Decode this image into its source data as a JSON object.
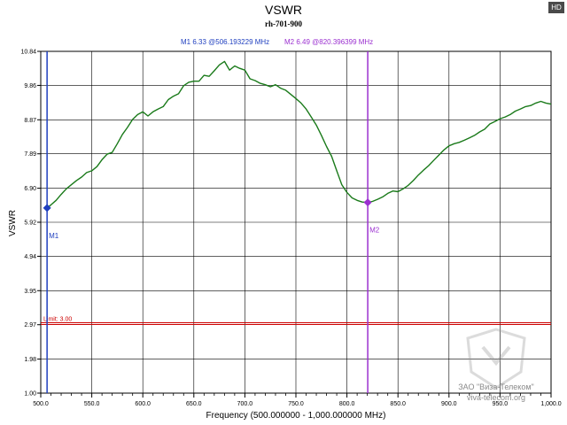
{
  "hd_badge": "HD",
  "watermark": {
    "line1": "ЗАО \"Виза-Телеком\"",
    "line2": "viva-telecom.org"
  },
  "chart_data": {
    "type": "line",
    "title": "VSWR",
    "subtitle": "rh-701-900",
    "xlabel": "Frequency (500.000000 - 1,000.000000 MHz)",
    "ylabel": "VSWR",
    "xlim": [
      500,
      1000
    ],
    "ylim": [
      1.0,
      10.84
    ],
    "x_ticks": [
      500,
      550,
      600,
      650,
      700,
      750,
      800,
      850,
      900,
      950,
      1000
    ],
    "x_tick_labels": [
      "500.0",
      "550.0",
      "600.0",
      "650.0",
      "700.0",
      "750.0",
      "800.0",
      "850.0",
      "900.0",
      "950.0",
      "1,000.0"
    ],
    "y_ticks": [
      1.0,
      1.98,
      2.97,
      3.95,
      4.94,
      5.92,
      6.9,
      7.89,
      8.87,
      9.86,
      10.84
    ],
    "y_tick_labels": [
      "1.00",
      "1.98",
      "2.97",
      "3.95",
      "4.94",
      "5.92",
      "6.90",
      "7.89",
      "8.87",
      "9.86",
      "10.84"
    ],
    "grid": true,
    "line_color": "#1a7a1a",
    "series": [
      {
        "x": [
          506.2,
          510,
          515,
          520,
          525,
          530,
          535,
          540,
          545,
          550,
          555,
          560,
          565,
          570,
          575,
          580,
          585,
          590,
          595,
          600,
          605,
          610,
          615,
          620,
          625,
          630,
          635,
          640,
          645,
          650,
          655,
          660,
          665,
          670,
          675,
          680,
          685,
          690,
          695,
          700,
          705,
          710,
          715,
          720,
          725,
          730,
          735,
          740,
          745,
          750,
          755,
          760,
          765,
          770,
          775,
          780,
          785,
          790,
          795,
          800,
          805,
          810,
          815,
          820.4,
          825,
          830,
          835,
          840,
          845,
          850,
          855,
          860,
          865,
          870,
          875,
          880,
          885,
          890,
          895,
          900,
          905,
          910,
          915,
          920,
          925,
          930,
          935,
          940,
          945,
          950,
          955,
          960,
          965,
          970,
          975,
          980,
          985,
          990,
          995,
          1000
        ],
        "values": [
          6.33,
          6.42,
          6.55,
          6.72,
          6.88,
          7.0,
          7.12,
          7.22,
          7.35,
          7.4,
          7.52,
          7.72,
          7.88,
          7.93,
          8.18,
          8.45,
          8.65,
          8.88,
          9.02,
          9.1,
          8.98,
          9.1,
          9.18,
          9.25,
          9.45,
          9.55,
          9.62,
          9.85,
          9.95,
          9.98,
          9.98,
          10.15,
          10.12,
          10.28,
          10.45,
          10.55,
          10.3,
          10.42,
          10.35,
          10.3,
          10.05,
          10.0,
          9.92,
          9.88,
          9.82,
          9.88,
          9.78,
          9.72,
          9.6,
          9.48,
          9.35,
          9.18,
          8.95,
          8.72,
          8.42,
          8.1,
          7.82,
          7.4,
          7.0,
          6.78,
          6.62,
          6.55,
          6.5,
          6.49,
          6.52,
          6.58,
          6.65,
          6.75,
          6.82,
          6.8,
          6.88,
          6.98,
          7.12,
          7.28,
          7.42,
          7.55,
          7.7,
          7.85,
          8.0,
          8.12,
          8.18,
          8.22,
          8.28,
          8.35,
          8.42,
          8.52,
          8.6,
          8.75,
          8.82,
          8.9,
          8.95,
          9.02,
          9.12,
          9.18,
          9.25,
          9.28,
          9.35,
          9.4,
          9.35,
          9.32
        ]
      }
    ],
    "markers": [
      {
        "name": "M1",
        "value": 6.33,
        "freq": 506.193229,
        "color": "#1f3fbf",
        "label": "M1  6.33 @506.193229 MHz"
      },
      {
        "name": "M2",
        "value": 6.49,
        "freq": 820.396399,
        "color": "#9b30d0",
        "label": "M2  6.49 @820.396399 MHz"
      }
    ],
    "limit": {
      "value": 3.0,
      "label": "Limit: 3.00",
      "color": "#cc0000"
    }
  }
}
